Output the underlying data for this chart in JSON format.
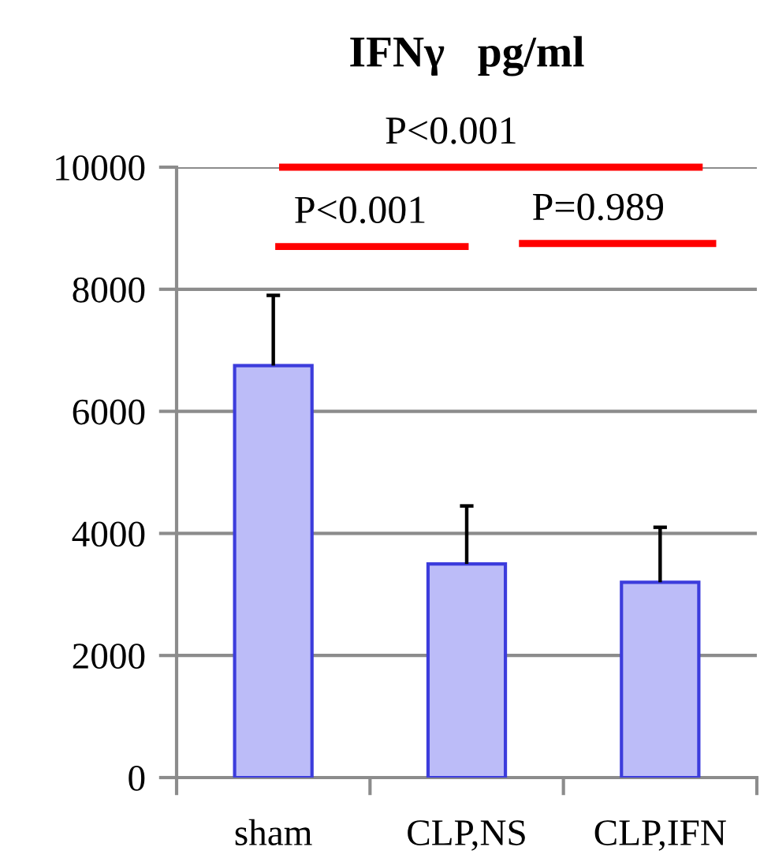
{
  "chart_data": {
    "type": "bar",
    "title": "IFNγ   pg/ml",
    "categories": [
      "sham",
      "CLP,NS",
      "CLP,IFN"
    ],
    "values": [
      6750,
      3500,
      3200
    ],
    "errors": [
      [
        6750,
        7900
      ],
      [
        3500,
        4450
      ],
      [
        3200,
        4100
      ]
    ],
    "color": "#bcbcf8",
    "ylim": [
      0,
      10000
    ],
    "yticks": [
      0,
      2000,
      4000,
      6000,
      8000,
      10000
    ],
    "grid": "y",
    "annotations": [
      "P<0.001",
      "P<0.001",
      "P=0.989"
    ]
  }
}
